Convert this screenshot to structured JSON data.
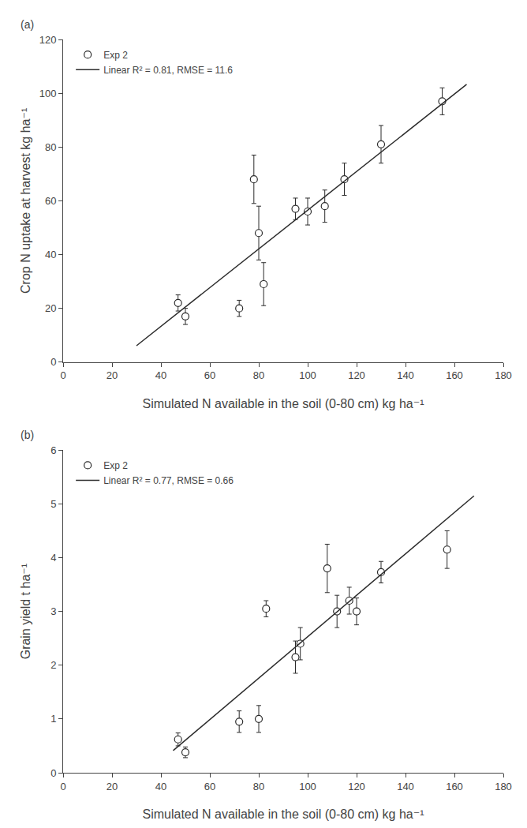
{
  "chart_data": [
    {
      "type": "scatter",
      "title": "(a)",
      "xlabel": "Simulated N available in the soil (0-80 cm) kg ha⁻¹",
      "ylabel": "Crop N uptake at harvest kg ha⁻¹",
      "xlim": [
        0,
        180
      ],
      "xticks": [
        0,
        20,
        40,
        60,
        80,
        100,
        120,
        140,
        160,
        180
      ],
      "ylim": [
        0,
        120
      ],
      "yticks": [
        0,
        20,
        40,
        60,
        80,
        100,
        120
      ],
      "grid": false,
      "legend": "upper left",
      "series": [
        {
          "name": "Exp 2",
          "type": "scatter",
          "marker": "circle-open",
          "color": "#2b2b2b",
          "x": [
            47,
            50,
            72,
            78,
            80,
            82,
            95,
            100,
            107,
            115,
            130,
            155
          ],
          "values": [
            22,
            17,
            20,
            68,
            48,
            29,
            57,
            56,
            58,
            68,
            81,
            97
          ],
          "yerr": [
            3,
            3,
            3,
            9,
            10,
            8,
            4,
            5,
            6,
            6,
            7,
            5
          ]
        },
        {
          "name": "Linear R² = 0.81, RMSE = 11.6",
          "type": "line",
          "line_style": "solid",
          "color": "#2b2b2b",
          "x": [
            30,
            165
          ],
          "values": [
            6.1,
            103.3
          ]
        }
      ]
    },
    {
      "type": "scatter",
      "title": "(b)",
      "xlabel": "Simulated N available in the soil (0-80 cm) kg ha⁻¹",
      "ylabel": "Grain yield t ha⁻¹",
      "xlim": [
        0,
        180
      ],
      "xticks": [
        0,
        20,
        40,
        60,
        80,
        100,
        120,
        140,
        160,
        180
      ],
      "ylim": [
        0,
        6
      ],
      "yticks": [
        0,
        1,
        2,
        3,
        4,
        5,
        6
      ],
      "grid": false,
      "legend": "upper left",
      "series": [
        {
          "name": "Exp 2",
          "type": "scatter",
          "marker": "circle-open",
          "color": "#2b2b2b",
          "x": [
            47,
            50,
            72,
            80,
            83,
            95,
            97,
            108,
            112,
            117,
            120,
            130,
            157
          ],
          "values": [
            0.62,
            0.38,
            0.95,
            1.0,
            3.05,
            2.15,
            2.4,
            3.8,
            3.0,
            3.2,
            3.0,
            3.73,
            4.15
          ],
          "yerr": [
            0.12,
            0.1,
            0.2,
            0.25,
            0.15,
            0.3,
            0.3,
            0.45,
            0.3,
            0.25,
            0.25,
            0.2,
            0.35
          ]
        },
        {
          "name": "Linear R² = 0.77, RMSE = 0.66",
          "type": "line",
          "line_style": "solid",
          "color": "#2b2b2b",
          "x": [
            45,
            168
          ],
          "values": [
            0.4125,
            5.148
          ]
        }
      ]
    }
  ]
}
